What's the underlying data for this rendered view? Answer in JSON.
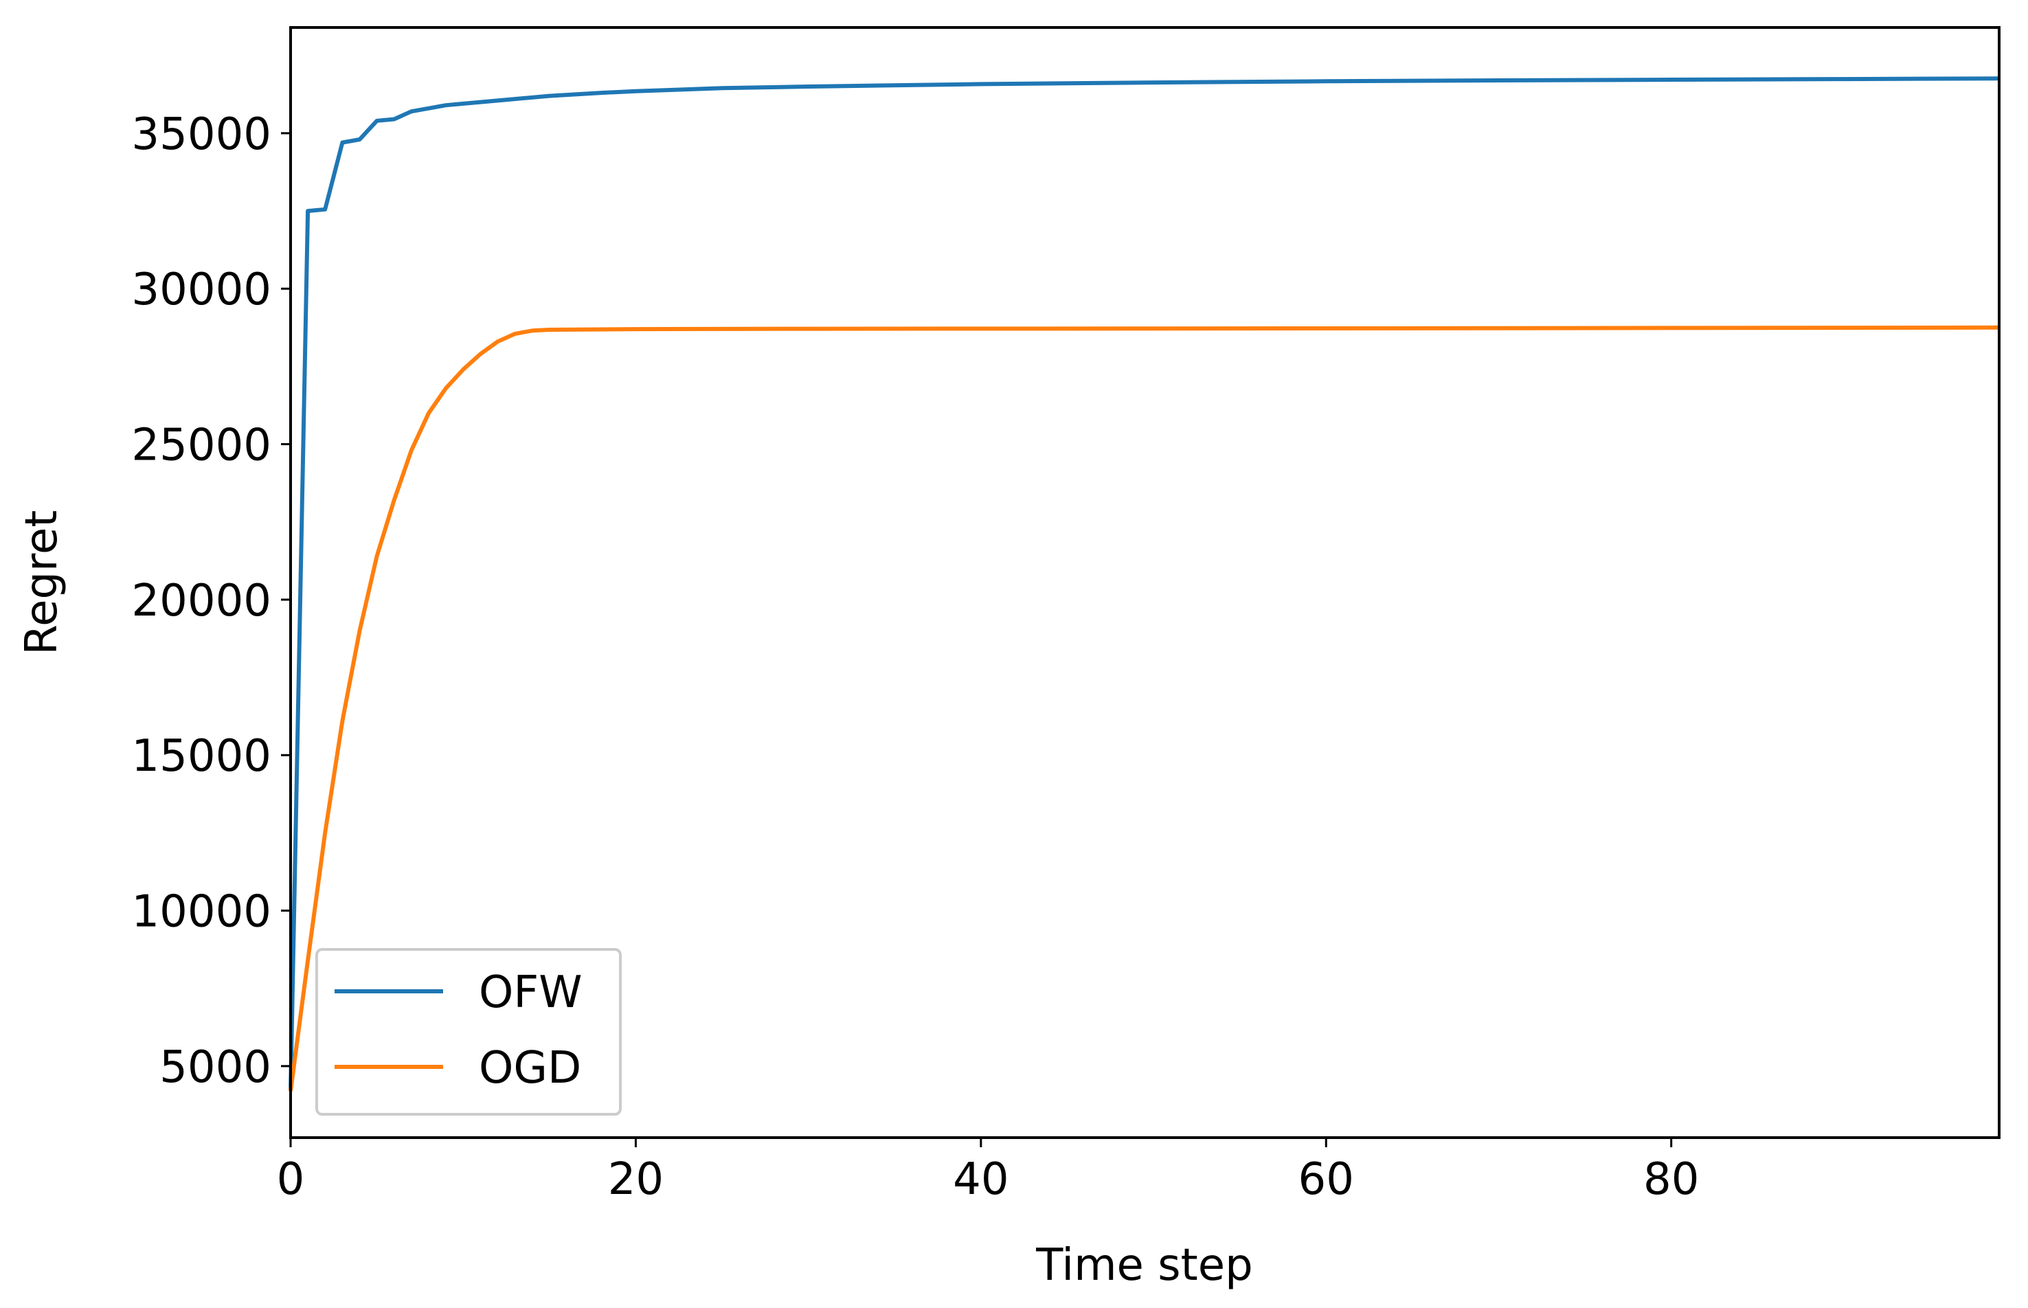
{
  "chart_data": {
    "type": "line",
    "title": "",
    "xlabel": "Time step",
    "ylabel": "Regret",
    "xlim": [
      0,
      99
    ],
    "ylim": [
      2700,
      38400
    ],
    "grid": false,
    "legend_position": "lower-left",
    "x_ticks": [
      0,
      20,
      40,
      60,
      80
    ],
    "x_tick_labels": [
      "0",
      "20",
      "40",
      "60",
      "80"
    ],
    "y_ticks": [
      5000,
      10000,
      15000,
      20000,
      25000,
      30000,
      35000
    ],
    "y_tick_labels": [
      "5000",
      "10000",
      "15000",
      "20000",
      "25000",
      "30000",
      "35000"
    ],
    "series": [
      {
        "name": "OFW",
        "color": "#1f77b4",
        "points": [
          [
            0,
            4200
          ],
          [
            1,
            32500
          ],
          [
            2,
            32550
          ],
          [
            3,
            34700
          ],
          [
            4,
            34800
          ],
          [
            5,
            35400
          ],
          [
            6,
            35450
          ],
          [
            7,
            35700
          ],
          [
            8,
            35800
          ],
          [
            9,
            35900
          ],
          [
            10,
            35950
          ],
          [
            12,
            36050
          ],
          [
            15,
            36200
          ],
          [
            18,
            36300
          ],
          [
            20,
            36350
          ],
          [
            25,
            36450
          ],
          [
            30,
            36500
          ],
          [
            40,
            36580
          ],
          [
            50,
            36630
          ],
          [
            60,
            36670
          ],
          [
            70,
            36700
          ],
          [
            80,
            36720
          ],
          [
            90,
            36740
          ],
          [
            99,
            36760
          ]
        ]
      },
      {
        "name": "OGD",
        "color": "#ff7f0e",
        "points": [
          [
            0,
            4200
          ],
          [
            1,
            8400
          ],
          [
            2,
            12500
          ],
          [
            3,
            16100
          ],
          [
            4,
            19000
          ],
          [
            5,
            21400
          ],
          [
            6,
            23200
          ],
          [
            7,
            24800
          ],
          [
            8,
            26000
          ],
          [
            9,
            26800
          ],
          [
            10,
            27400
          ],
          [
            11,
            27900
          ],
          [
            12,
            28300
          ],
          [
            13,
            28550
          ],
          [
            14,
            28650
          ],
          [
            15,
            28680
          ],
          [
            20,
            28700
          ],
          [
            30,
            28710
          ],
          [
            50,
            28720
          ],
          [
            70,
            28730
          ],
          [
            99,
            28750
          ]
        ]
      }
    ]
  }
}
